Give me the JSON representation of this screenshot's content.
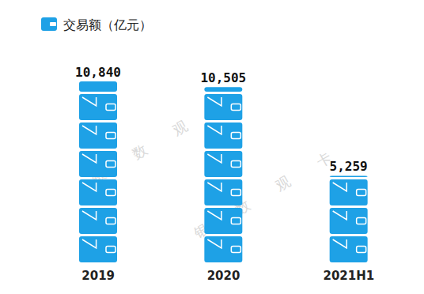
{
  "chart_data": {
    "type": "bar",
    "title": "交易额（亿元）",
    "categories": [
      "2019",
      "2020",
      "2021H1"
    ],
    "values": [
      10840,
      10505,
      5259
    ],
    "value_labels": [
      "10,840",
      "10,505",
      "5,259"
    ],
    "color": "#1ea1e6",
    "data_labels": true,
    "tick_labels": "x",
    "annotations": [
      "银 数 观 卡"
    ]
  }
}
